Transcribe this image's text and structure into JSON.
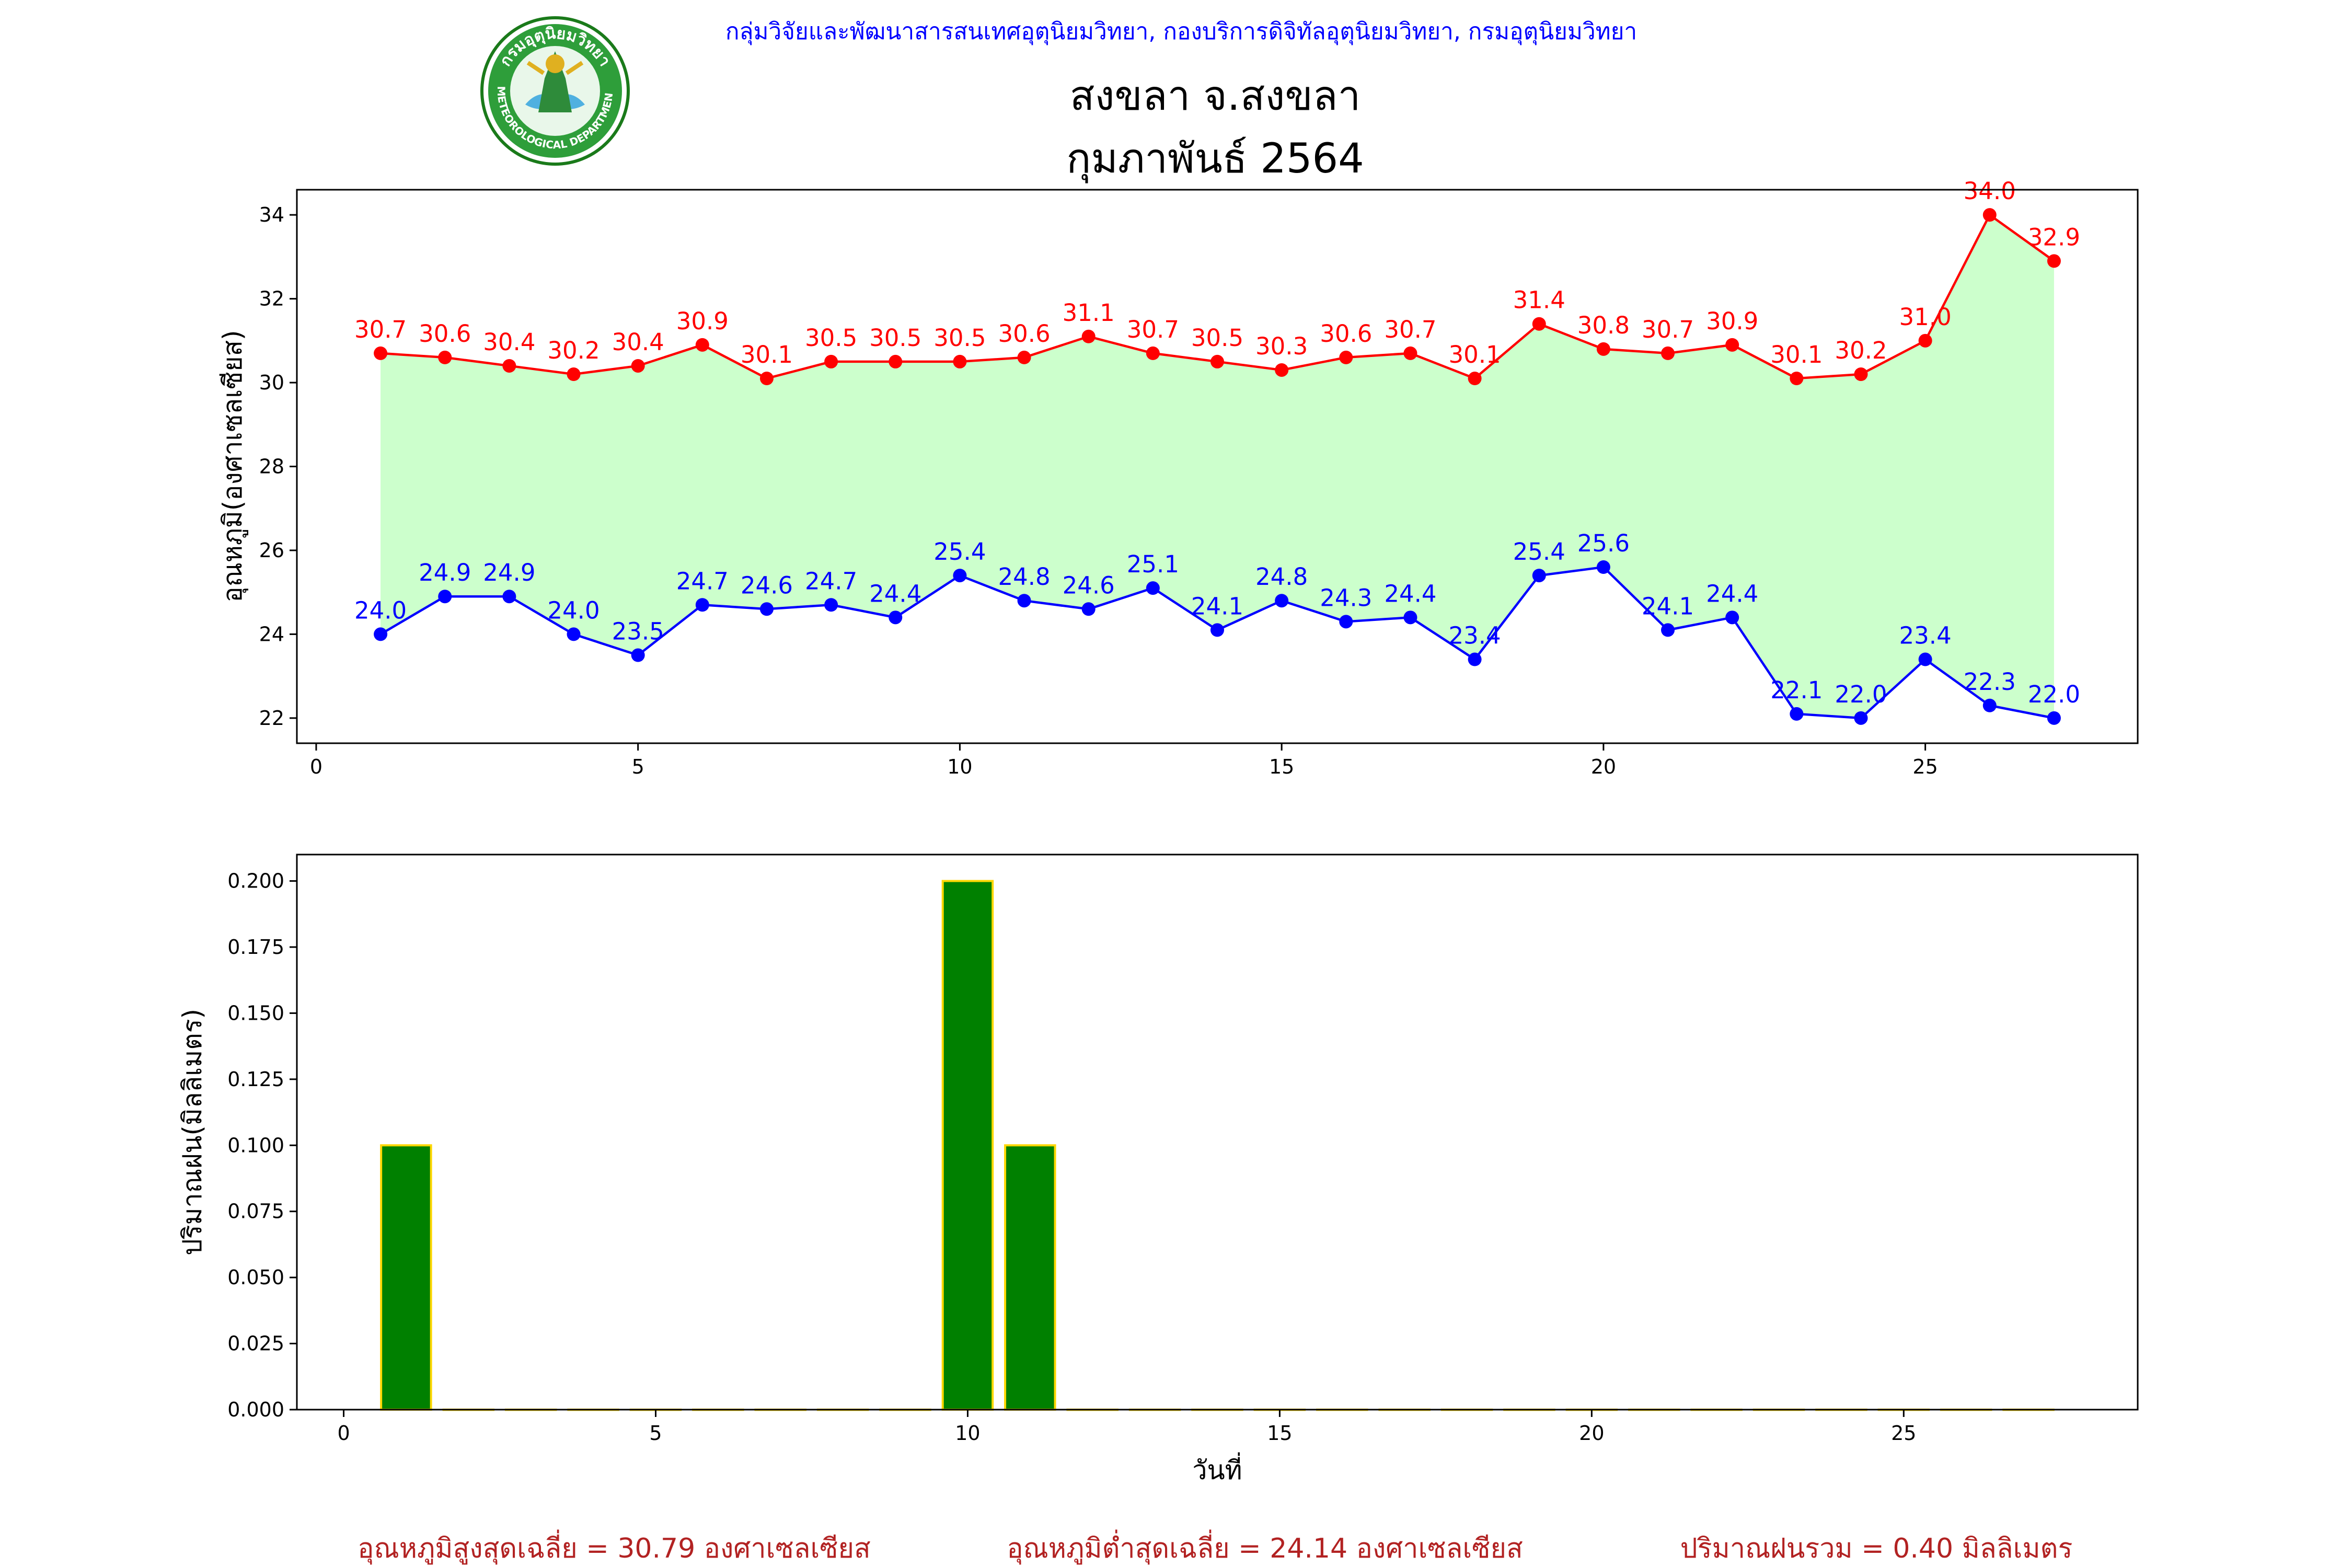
{
  "header": {
    "agency": "กลุ่มวิจัยและพัฒนาสารสนเทศอุตุนิยมวิทยา, กองบริการดิจิทัลอุตุนิยมวิทยา, กรมอุตุนิยมวิทยา",
    "title_line1": "สงขลา จ.สงขลา",
    "title_line2": "กุมภาพันธ์ 2564",
    "logo": {
      "text_top": "กรมอุตุนิยมวิทยา",
      "text_bottom": "METEOROLOGICAL DEPARTMENT",
      "icon": "meteorological-department-seal"
    }
  },
  "colors": {
    "max": "#ff0000",
    "min": "#0000ff",
    "fill": "#ccffcc",
    "bar": "#008000",
    "bar_edge": "#ffd700",
    "summary": "#b22222",
    "agency": "#0000ff"
  },
  "chart_data": [
    {
      "type": "line",
      "ylabel": "อุณหภูมิ(องศาเซลเซียส)",
      "xlabel": "",
      "xlim": [
        -0.3,
        28.3
      ],
      "ylim": [
        21.4,
        34.6
      ],
      "xticks": [
        0,
        5,
        10,
        15,
        20,
        25
      ],
      "yticks": [
        22,
        24,
        26,
        28,
        30,
        32,
        34
      ],
      "grid": false,
      "fill_between": true,
      "x": [
        1,
        2,
        3,
        4,
        5,
        6,
        7,
        8,
        9,
        10,
        11,
        12,
        13,
        14,
        15,
        16,
        17,
        18,
        19,
        20,
        21,
        22,
        23,
        24,
        25,
        26,
        27
      ],
      "series": [
        {
          "key": "max",
          "values": [
            30.7,
            30.6,
            30.4,
            30.2,
            30.4,
            30.9,
            30.1,
            30.5,
            30.5,
            30.5,
            30.6,
            31.1,
            30.7,
            30.5,
            30.3,
            30.6,
            30.7,
            30.1,
            31.4,
            30.8,
            30.7,
            30.9,
            30.1,
            30.2,
            31.0,
            34.0,
            32.9
          ]
        },
        {
          "key": "min",
          "values": [
            24.0,
            24.9,
            24.9,
            24.0,
            23.5,
            24.7,
            24.6,
            24.7,
            24.4,
            25.4,
            24.8,
            24.6,
            25.1,
            24.1,
            24.8,
            24.3,
            24.4,
            23.4,
            25.4,
            25.6,
            24.1,
            24.4,
            22.1,
            22.0,
            23.4,
            22.3,
            22.0
          ]
        }
      ]
    },
    {
      "type": "bar",
      "ylabel": "ปริมาณฝน(มิลลิเมตร)",
      "xlabel": "วันที่",
      "xlim": [
        -0.75,
        28.75
      ],
      "ylim": [
        0,
        0.21
      ],
      "xticks": [
        0,
        5,
        10,
        15,
        20,
        25
      ],
      "yticks": [
        "0.000",
        "0.025",
        "0.050",
        "0.075",
        "0.100",
        "0.125",
        "0.150",
        "0.175",
        "0.200"
      ],
      "grid": false,
      "x": [
        1,
        2,
        3,
        4,
        5,
        6,
        7,
        8,
        9,
        10,
        11,
        12,
        13,
        14,
        15,
        16,
        17,
        18,
        19,
        20,
        21,
        22,
        23,
        24,
        25,
        26,
        27
      ],
      "values": [
        0.1,
        0,
        0,
        0,
        0,
        0,
        0,
        0,
        0,
        0.2,
        0.1,
        0,
        0,
        0,
        0,
        0,
        0,
        0,
        0,
        0,
        0,
        0,
        0,
        0,
        0,
        0,
        0
      ]
    }
  ],
  "summary": {
    "avg_max": "อุณหภูมิสูงสุดเฉลี่ย = 30.79 องศาเซลเซียส",
    "avg_min": "อุณหภูมิต่ำสุดเฉลี่ย = 24.14 องศาเซลเซียส",
    "total_rain": "ปริมาณฝนรวม = 0.40 มิลลิเมตร"
  }
}
